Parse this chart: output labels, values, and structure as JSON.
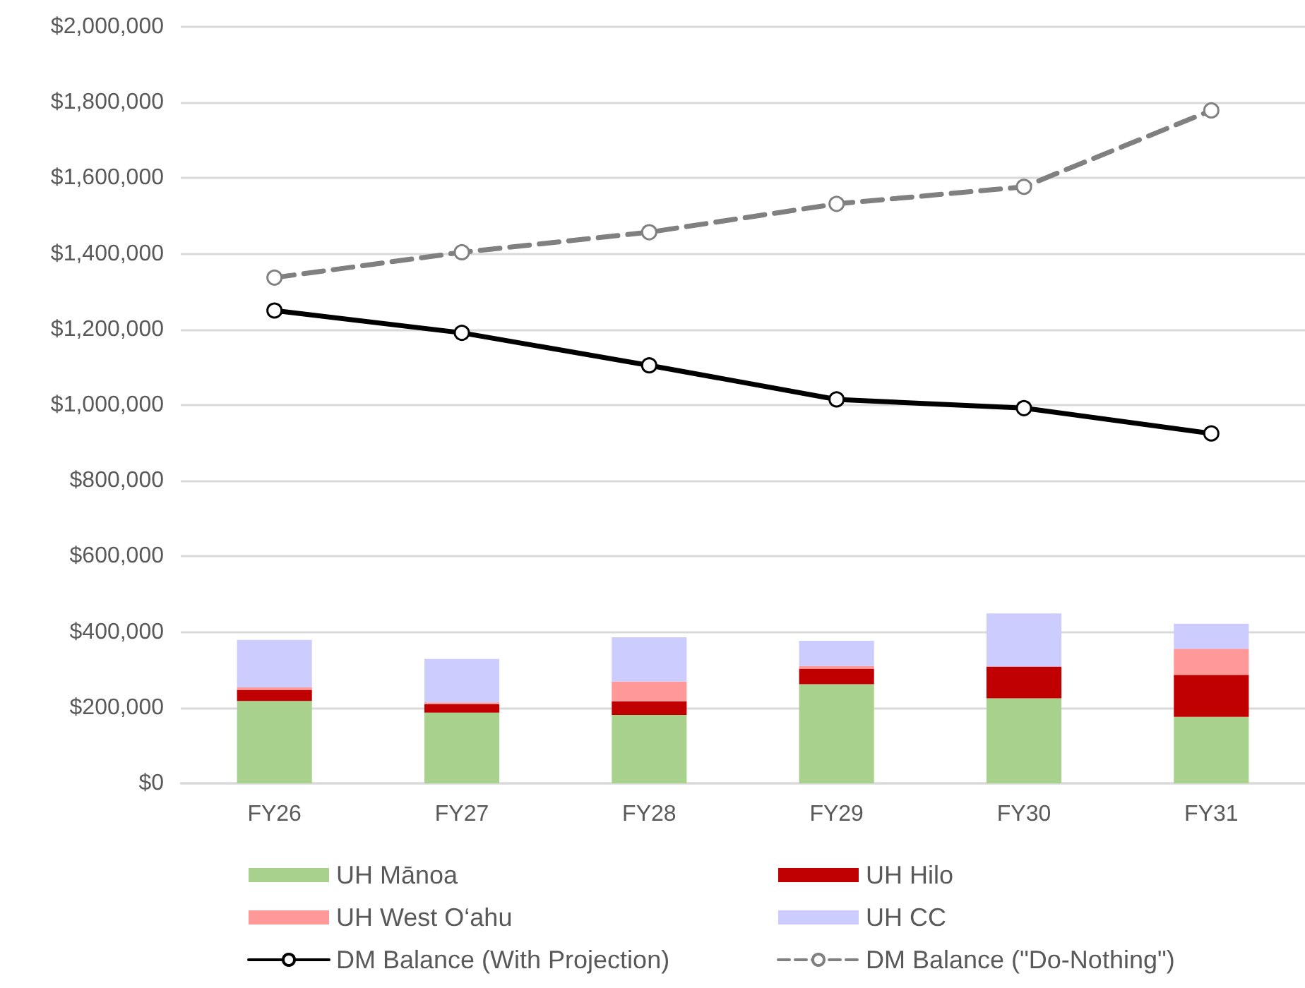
{
  "chart_data": {
    "type": "bar",
    "stacked": true,
    "categories": [
      "FY26",
      "FY27",
      "FY28",
      "FY29",
      "FY30",
      "FY31"
    ],
    "series": [
      {
        "name": "UH Mānoa",
        "color": "#a9d18e",
        "values": [
          218000,
          187000,
          181000,
          262000,
          225000,
          176000
        ]
      },
      {
        "name": "UH Hilo",
        "color": "#c00000",
        "values": [
          29000,
          22000,
          36000,
          41000,
          84000,
          111000
        ]
      },
      {
        "name": "UH West O‘ahu",
        "color": "#ff9999",
        "values": [
          7000,
          5000,
          52000,
          7000,
          0,
          69000
        ]
      },
      {
        "name": "UH CC",
        "color": "#ccccff",
        "values": [
          125000,
          115000,
          117000,
          67000,
          140000,
          66000
        ]
      },
      {
        "name": "DM Balance (With Projection)",
        "type": "line",
        "color": "#000000",
        "line_style": "solid",
        "marker": "circle",
        "values": [
          1250000,
          1191000,
          1105000,
          1015000,
          992000,
          925000
        ]
      },
      {
        "name": "DM Balance (\"Do-Nothing\")",
        "type": "line",
        "color": "#808080",
        "line_style": "dashed",
        "marker": "circle",
        "values": [
          1337000,
          1404000,
          1457000,
          1532000,
          1577000,
          1779000
        ]
      }
    ],
    "ylim": [
      0,
      2000000
    ],
    "yticks": [
      {
        "value": 0,
        "label": "$0"
      },
      {
        "value": 200000,
        "label": "$200,000"
      },
      {
        "value": 400000,
        "label": "$400,000"
      },
      {
        "value": 600000,
        "label": "$600,000"
      },
      {
        "value": 800000,
        "label": "$800,000"
      },
      {
        "value": 1000000,
        "label": "$1,000,000"
      },
      {
        "value": 1200000,
        "label": "$1,200,000"
      },
      {
        "value": 1400000,
        "label": "$1,400,000"
      },
      {
        "value": 1600000,
        "label": "$1,600,000"
      },
      {
        "value": 1800000,
        "label": "$1,800,000"
      },
      {
        "value": 2000000,
        "label": "$2,000,000"
      }
    ],
    "grid": "y",
    "legend": "bottom"
  }
}
